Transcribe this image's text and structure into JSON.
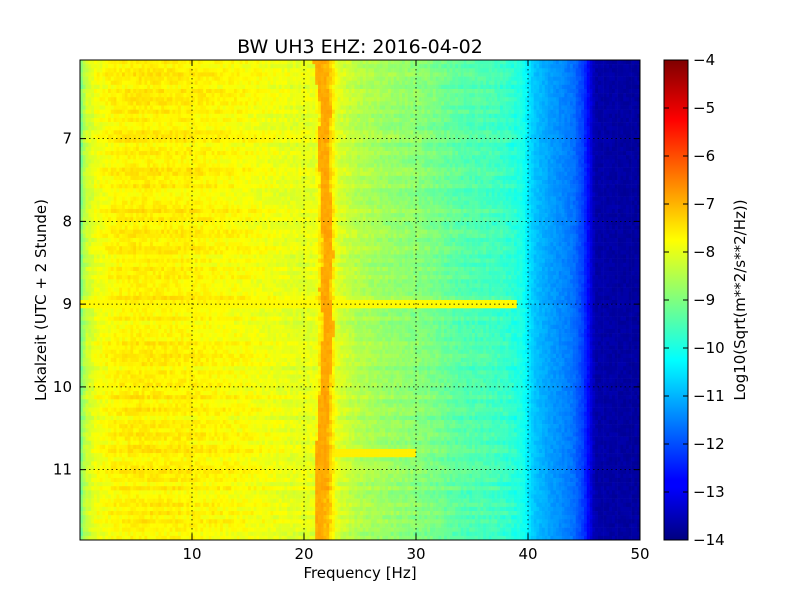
{
  "chart_data": {
    "type": "heatmap",
    "title": "BW UH3 EHZ: 2016-04-02",
    "xlabel": "Frequency [Hz]",
    "ylabel": "Lokalzeit (UTC + 2 Stunde)",
    "xlim": [
      0,
      50
    ],
    "ylim": [
      11.85,
      6.05
    ],
    "x_ticks": [
      10,
      20,
      30,
      40,
      50
    ],
    "x_tick_labels": [
      "10",
      "20",
      "30",
      "40",
      "50"
    ],
    "y_ticks": [
      7,
      8,
      9,
      10,
      11
    ],
    "y_tick_labels": [
      "7",
      "8",
      "9",
      "10",
      "11"
    ],
    "grid": true,
    "colorbar": {
      "label": "Log10(Sqrt(m**2/s**2/Hz))",
      "range": [
        -14,
        -4
      ],
      "ticks": [
        -4,
        -5,
        -6,
        -7,
        -8,
        -9,
        -10,
        -11,
        -12,
        -13,
        -14
      ],
      "tick_labels": [
        "−4",
        "−5",
        "−6",
        "−7",
        "−8",
        "−9",
        "−10",
        "−11",
        "−12",
        "−13",
        "−14"
      ],
      "colormap": "jet"
    },
    "frequency_profile": {
      "frequency": [
        0,
        0.5,
        1.5,
        3,
        5,
        10,
        15,
        19,
        21,
        22,
        23,
        25,
        27,
        30,
        32,
        34,
        36,
        38,
        39.5,
        40.5,
        42,
        44,
        45,
        46,
        50
      ],
      "level": [
        -9.2,
        -8.3,
        -7.9,
        -7.7,
        -7.6,
        -7.65,
        -7.8,
        -8.0,
        -8.0,
        -6.9,
        -8.1,
        -8.5,
        -8.7,
        -8.9,
        -9.1,
        -9.4,
        -9.5,
        -9.7,
        -10.0,
        -10.8,
        -11.2,
        -11.6,
        -12.2,
        -13.6,
        -13.7
      ]
    },
    "tonal_line": {
      "hours": [
        6.05,
        6.3,
        6.5,
        6.7,
        7.0,
        7.5,
        8.0,
        8.4,
        8.8,
        9.0,
        9.3,
        9.5,
        10.0,
        10.5,
        11.0,
        11.5,
        11.85
      ],
      "frequency": [
        21.3,
        21.5,
        21.8,
        22.0,
        21.6,
        21.9,
        22.0,
        22.2,
        21.8,
        22.0,
        22.3,
        22.0,
        21.9,
        21.6,
        21.5,
        21.4,
        21.4
      ],
      "level": -6.9
    },
    "horizontal_features": [
      {
        "hour": 9.0,
        "freq_range": [
          0,
          39
        ],
        "level": -7.7
      },
      {
        "hour": 10.8,
        "freq_range": [
          22,
          30
        ],
        "level": -7.6
      }
    ]
  }
}
